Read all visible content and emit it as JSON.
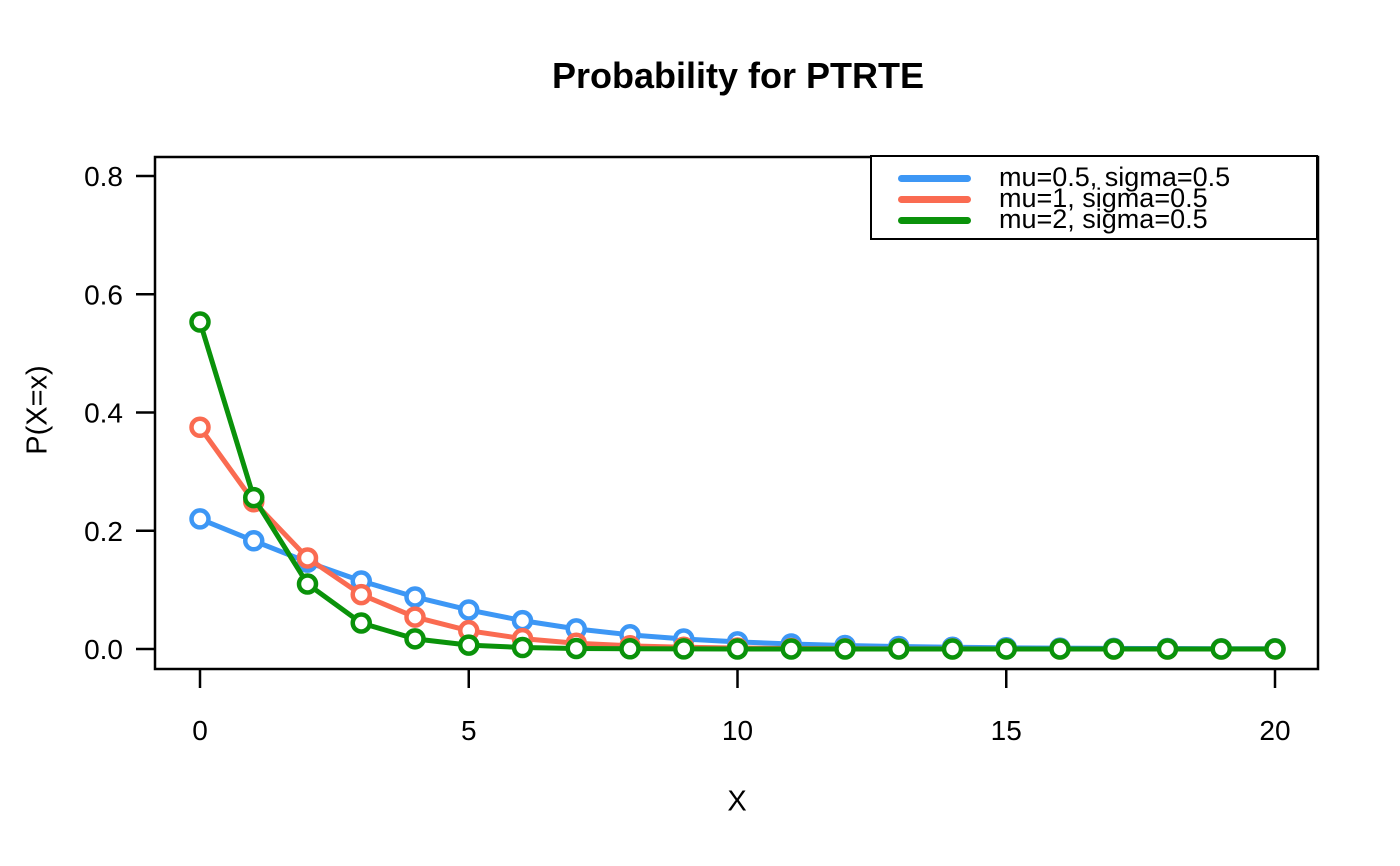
{
  "title": "Probability for PTRTE",
  "chart_data": {
    "type": "line",
    "title": "Probability for PTRTE",
    "xlabel": "X",
    "ylabel": "P(X=x)",
    "x": [
      0,
      1,
      2,
      3,
      4,
      5,
      6,
      7,
      8,
      9,
      10,
      11,
      12,
      13,
      14,
      15,
      16,
      17,
      18,
      19,
      20
    ],
    "xticks": [
      0,
      5,
      10,
      15,
      20
    ],
    "yticks": [
      0.0,
      0.2,
      0.4,
      0.6,
      0.8
    ],
    "xlim": [
      -0.84,
      20.84
    ],
    "ylim": [
      -0.034,
      0.832
    ],
    "grid": false,
    "legend_position": "top-right",
    "marker": "open-circle",
    "axis_color": "#000000",
    "series": [
      {
        "name": "mu=0.5, sigma=0.5",
        "color": "#3D97F5",
        "values": [
          0.22,
          0.183,
          0.147,
          0.115,
          0.088,
          0.066,
          0.048,
          0.034,
          0.024,
          0.017,
          0.012,
          0.0085,
          0.006,
          0.0042,
          0.003,
          0.0021,
          0.0015,
          0.0011,
          0.0008,
          0.0005,
          0.0004
        ]
      },
      {
        "name": "mu=1, sigma=0.5",
        "color": "#FA6B51",
        "values": [
          0.375,
          0.249,
          0.154,
          0.092,
          0.054,
          0.031,
          0.0175,
          0.0098,
          0.0054,
          0.003,
          0.0016,
          0.0009,
          0.0005,
          0.00027,
          0.00015,
          8e-05,
          4e-05,
          2e-05,
          1e-05,
          6e-06,
          3e-06
        ]
      },
      {
        "name": "mu=2, sigma=0.5",
        "color": "#0A920A",
        "values": [
          0.553,
          0.256,
          0.11,
          0.044,
          0.0172,
          0.0066,
          0.0025,
          0.0009,
          0.00034,
          0.00013,
          5e-05,
          2e-05,
          7e-06,
          3e-06,
          1e-06,
          0,
          0,
          0,
          0,
          0,
          0
        ]
      }
    ]
  }
}
